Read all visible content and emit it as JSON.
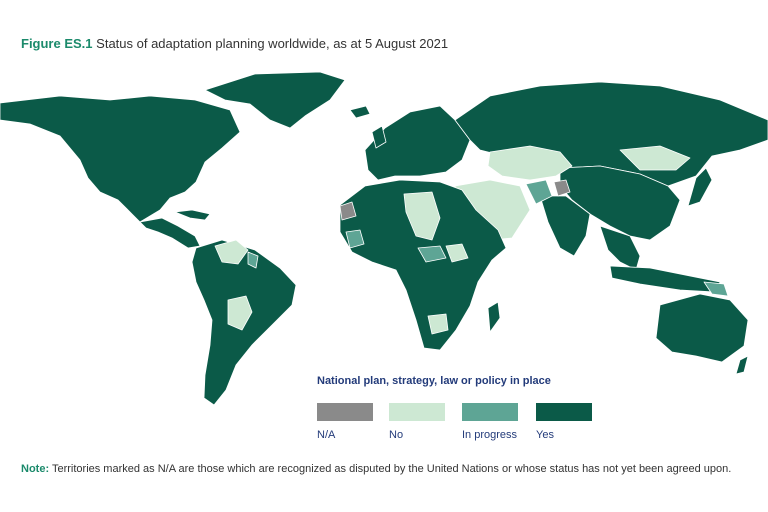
{
  "title": {
    "figure_label": "Figure ES.1",
    "text": "Status of adaptation planning worldwide, as at 5 August 2021"
  },
  "legend": {
    "title": "National plan, strategy, law or policy in place",
    "items": [
      {
        "label": "N/A",
        "color": "#8a8a8a"
      },
      {
        "label": "No",
        "color": "#cde8d3"
      },
      {
        "label": "In progress",
        "color": "#5ea595"
      },
      {
        "label": "Yes",
        "color": "#0b5a48"
      }
    ]
  },
  "note": {
    "label": "Note:",
    "text": "Territories marked as N/A are those which are recognized as disputed by the United Nations or whose status has not yet been agreed upon."
  },
  "colors": {
    "yes": "#0b5a48",
    "no": "#cde8d3",
    "in_progress": "#5ea595",
    "na": "#8a8a8a",
    "border": "#ffffff",
    "accent": "#1b8a6b",
    "legend_text": "#233b7a"
  }
}
